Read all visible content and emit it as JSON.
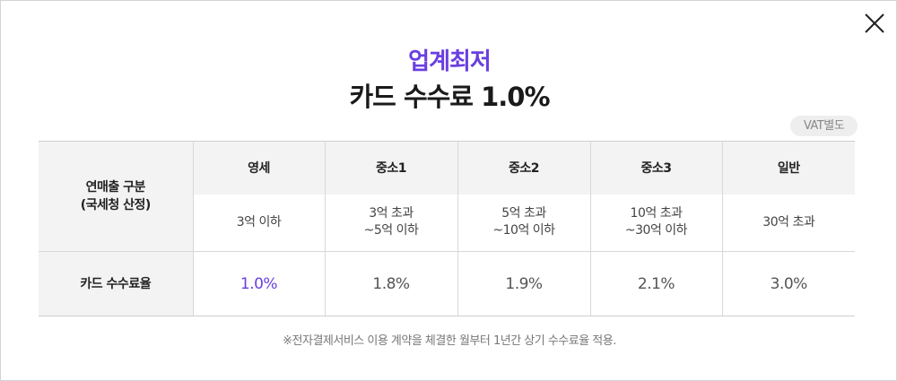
{
  "header": {
    "accent_title": "업계최저",
    "main_title": "카드 수수료 1.0%"
  },
  "vat_badge": "VAT별도",
  "table": {
    "row_header_category": "연매출 구분\n(국세청 산정)",
    "row_header_fee": "카드 수수료율",
    "columns": [
      {
        "name": "영세",
        "range": "3억 이하",
        "fee": "1.0%"
      },
      {
        "name": "중소1",
        "range": "3억 초과\n~5억 이하",
        "fee": "1.8%"
      },
      {
        "name": "중소2",
        "range": "5억 초과\n~10억 이하",
        "fee": "1.9%"
      },
      {
        "name": "중소3",
        "range": "10억 초과\n~30억 이하",
        "fee": "2.1%"
      },
      {
        "name": "일반",
        "range": "30억 초과",
        "fee": "3.0%"
      }
    ]
  },
  "footnote": "※전자결제서비스 이용 계약을 체결한 월부터 1년간 상기 수수료율 적용.",
  "colors": {
    "accent": "#6a3fe0",
    "header_bg": "#f3f3f3",
    "border": "#d8d8d8"
  },
  "icons": {
    "close": "close-icon"
  }
}
